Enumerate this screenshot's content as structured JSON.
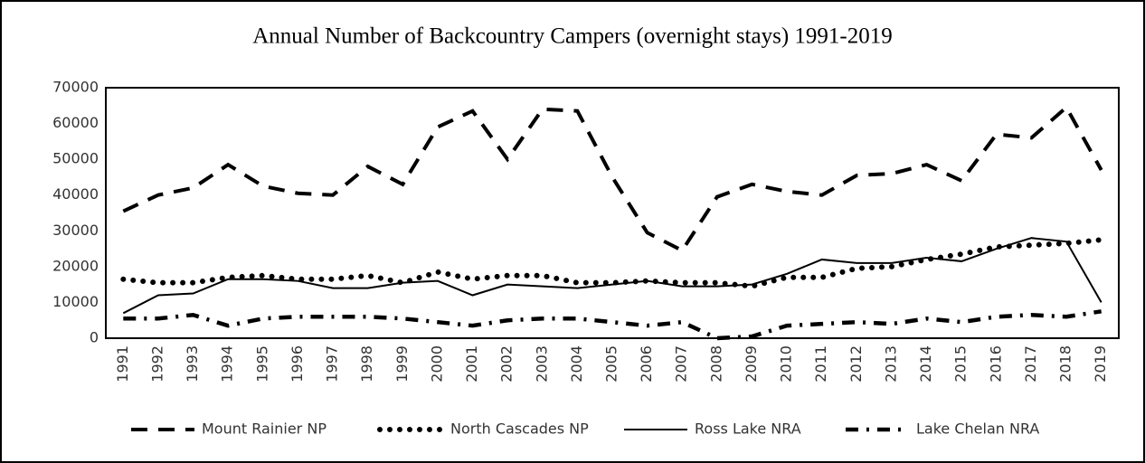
{
  "chart_data": {
    "type": "line",
    "title": "Annual Number of Backcountry Campers (overnight stays) 1991-2019",
    "categories": [
      "1991",
      "1992",
      "1993",
      "1994",
      "1995",
      "1996",
      "1997",
      "1998",
      "1999",
      "2000",
      "2001",
      "2002",
      "2003",
      "2004",
      "2005",
      "2006",
      "2007",
      "2008",
      "2009",
      "2010",
      "2011",
      "2012",
      "2013",
      "2014",
      "2015",
      "2016",
      "2017",
      "2018",
      "2019"
    ],
    "series": [
      {
        "name": "Mount Rainier NP",
        "color": "#000000",
        "style": "dashed",
        "values": [
          35500,
          40000,
          42000,
          48500,
          42500,
          40500,
          40000,
          48000,
          43000,
          59000,
          63500,
          50000,
          64000,
          63500,
          45000,
          29500,
          24500,
          39500,
          43000,
          41000,
          40000,
          45500,
          46000,
          48500,
          44000,
          57000,
          56000,
          64500,
          47000
        ]
      },
      {
        "name": "North Cascades NP",
        "color": "#000000",
        "style": "dotted",
        "values": [
          16500,
          15500,
          15500,
          17000,
          17500,
          16500,
          16500,
          17500,
          15500,
          18500,
          16500,
          17500,
          17500,
          15500,
          15500,
          16000,
          15500,
          15500,
          14500,
          17000,
          17000,
          19500,
          20000,
          22000,
          23500,
          25500,
          26000,
          26500,
          27500
        ]
      },
      {
        "name": "Ross Lake NRA",
        "color": "#000000",
        "style": "solid",
        "values": [
          7000,
          12000,
          12500,
          16500,
          16500,
          16000,
          14000,
          14000,
          15500,
          16000,
          12000,
          15000,
          14500,
          14000,
          15000,
          16000,
          14500,
          14500,
          15000,
          18000,
          22000,
          21000,
          21000,
          22500,
          21500,
          25000,
          28000,
          27000,
          10000
        ]
      },
      {
        "name": "Lake Chelan NRA",
        "color": "#000000",
        "style": "dashdot",
        "values": [
          5500,
          5500,
          6500,
          3500,
          5500,
          6000,
          6000,
          6000,
          5500,
          4500,
          3500,
          5000,
          5500,
          5500,
          4500,
          3500,
          4500,
          0,
          500,
          3500,
          4000,
          4500,
          4000,
          5500,
          4500,
          6000,
          6500,
          6000,
          7500
        ]
      }
    ],
    "ylim": [
      0,
      70000
    ],
    "yticks": [
      0,
      10000,
      20000,
      30000,
      40000,
      50000,
      60000,
      70000
    ],
    "grid": false,
    "legend": "bottom"
  }
}
